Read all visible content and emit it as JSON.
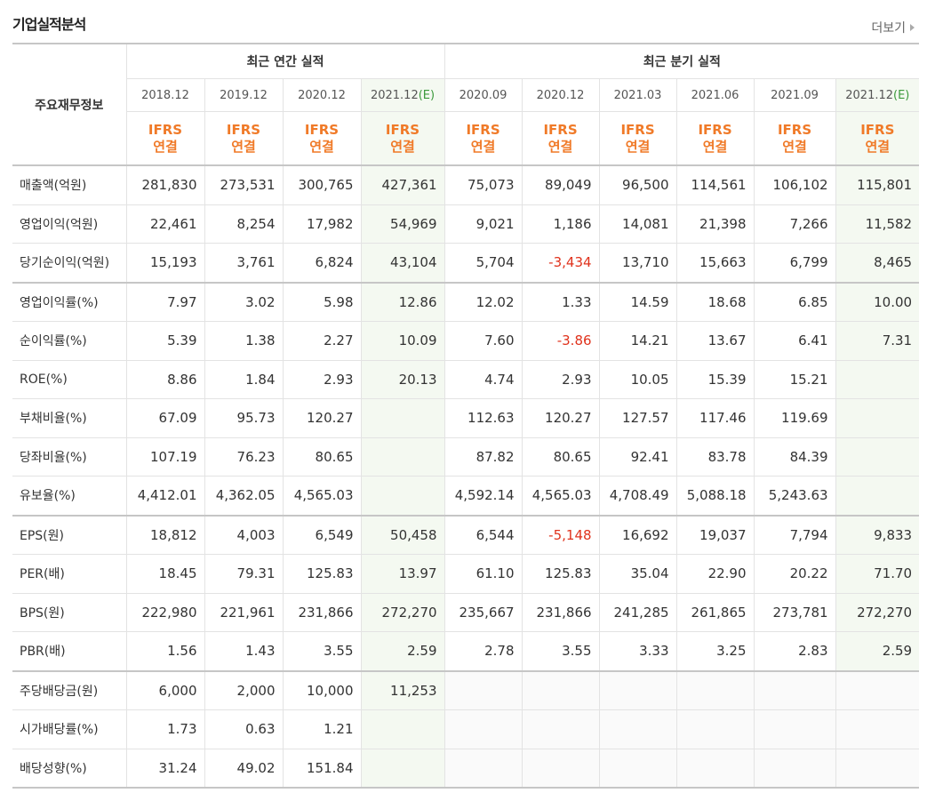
{
  "header": {
    "title": "기업실적분석",
    "more": "더보기"
  },
  "table": {
    "corner": "주요재무정보",
    "groups": [
      {
        "label": "최근 연간 실적",
        "span": 4
      },
      {
        "label": "최근 분기 실적",
        "span": 6
      }
    ],
    "periods": [
      {
        "date": "2018.12",
        "basis": [
          "IFRS",
          "연결"
        ]
      },
      {
        "date": "2019.12",
        "basis": [
          "IFRS",
          "연결"
        ]
      },
      {
        "date": "2020.12",
        "basis": [
          "IFRS",
          "연결"
        ]
      },
      {
        "date": "2021.12",
        "estimate": "(E)",
        "basis": [
          "IFRS",
          "연결"
        ]
      },
      {
        "date": "2020.09",
        "basis": [
          "IFRS",
          "연결"
        ]
      },
      {
        "date": "2020.12",
        "basis": [
          "IFRS",
          "연결"
        ]
      },
      {
        "date": "2021.03",
        "basis": [
          "IFRS",
          "연결"
        ]
      },
      {
        "date": "2021.06",
        "basis": [
          "IFRS",
          "연결"
        ]
      },
      {
        "date": "2021.09",
        "basis": [
          "IFRS",
          "연결"
        ]
      },
      {
        "date": "2021.12",
        "estimate": "(E)",
        "basis": [
          "IFRS",
          "연결"
        ]
      }
    ],
    "sections": [
      [
        {
          "label": "매출액(억원)",
          "values": [
            "281,830",
            "273,531",
            "300,765",
            "427,361",
            "75,073",
            "89,049",
            "96,500",
            "114,561",
            "106,102",
            "115,801"
          ]
        },
        {
          "label": "영업이익(억원)",
          "values": [
            "22,461",
            "8,254",
            "17,982",
            "54,969",
            "9,021",
            "1,186",
            "14,081",
            "21,398",
            "7,266",
            "11,582"
          ]
        },
        {
          "label": "당기순이익(억원)",
          "values": [
            "15,193",
            "3,761",
            "6,824",
            "43,104",
            "5,704",
            "-3,434",
            "13,710",
            "15,663",
            "6,799",
            "8,465"
          ]
        }
      ],
      [
        {
          "label": "영업이익률(%)",
          "values": [
            "7.97",
            "3.02",
            "5.98",
            "12.86",
            "12.02",
            "1.33",
            "14.59",
            "18.68",
            "6.85",
            "10.00"
          ]
        },
        {
          "label": "순이익률(%)",
          "values": [
            "5.39",
            "1.38",
            "2.27",
            "10.09",
            "7.60",
            "-3.86",
            "14.21",
            "13.67",
            "6.41",
            "7.31"
          ]
        },
        {
          "label": "ROE(%)",
          "values": [
            "8.86",
            "1.84",
            "2.93",
            "20.13",
            "4.74",
            "2.93",
            "10.05",
            "15.39",
            "15.21",
            null
          ]
        },
        {
          "label": "부채비율(%)",
          "values": [
            "67.09",
            "95.73",
            "120.27",
            null,
            "112.63",
            "120.27",
            "127.57",
            "117.46",
            "119.69",
            null
          ]
        },
        {
          "label": "당좌비율(%)",
          "values": [
            "107.19",
            "76.23",
            "80.65",
            null,
            "87.82",
            "80.65",
            "92.41",
            "83.78",
            "84.39",
            null
          ]
        },
        {
          "label": "유보율(%)",
          "values": [
            "4,412.01",
            "4,362.05",
            "4,565.03",
            null,
            "4,592.14",
            "4,565.03",
            "4,708.49",
            "5,088.18",
            "5,243.63",
            null
          ]
        }
      ],
      [
        {
          "label": "EPS(원)",
          "values": [
            "18,812",
            "4,003",
            "6,549",
            "50,458",
            "6,544",
            "-5,148",
            "16,692",
            "19,037",
            "7,794",
            "9,833"
          ]
        },
        {
          "label": "PER(배)",
          "values": [
            "18.45",
            "79.31",
            "125.83",
            "13.97",
            "61.10",
            "125.83",
            "35.04",
            "22.90",
            "20.22",
            "71.70"
          ]
        },
        {
          "label": "BPS(원)",
          "values": [
            "222,980",
            "221,961",
            "231,866",
            "272,270",
            "235,667",
            "231,866",
            "241,285",
            "261,865",
            "273,781",
            "272,270"
          ]
        },
        {
          "label": "PBR(배)",
          "values": [
            "1.56",
            "1.43",
            "3.55",
            "2.59",
            "2.78",
            "3.55",
            "3.33",
            "3.25",
            "2.83",
            "2.59"
          ]
        }
      ],
      [
        {
          "label": "주당배당금(원)",
          "values": [
            "6,000",
            "2,000",
            "10,000",
            "11,253",
            null,
            null,
            null,
            null,
            null,
            null
          ]
        },
        {
          "label": "시가배당률(%)",
          "values": [
            "1.73",
            "0.63",
            "1.21",
            null,
            null,
            null,
            null,
            null,
            null,
            null
          ]
        },
        {
          "label": "배당성향(%)",
          "values": [
            "31.24",
            "49.02",
            "151.84",
            null,
            null,
            null,
            null,
            null,
            null,
            null
          ]
        }
      ]
    ]
  }
}
